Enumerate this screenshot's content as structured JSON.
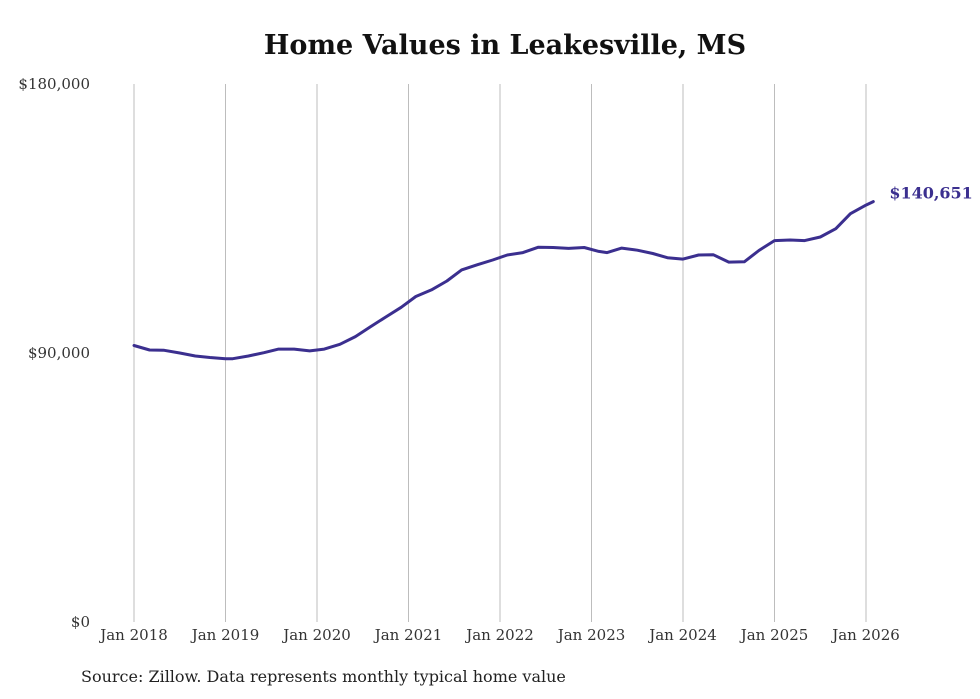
{
  "chart_data": {
    "type": "line",
    "title": "Home Values in Leakesville, MS",
    "xlabel": "",
    "ylabel": "",
    "ylim": [
      0,
      180000
    ],
    "y_ticks": [
      {
        "value": 0,
        "label": "$0"
      },
      {
        "value": 90000,
        "label": "$90,000"
      },
      {
        "value": 180000,
        "label": "$180,000"
      }
    ],
    "x_range": [
      2018.0,
      2026.0
    ],
    "x_ticks": [
      {
        "value": 2018,
        "label": "Jan 2018"
      },
      {
        "value": 2019,
        "label": "Jan 2019"
      },
      {
        "value": 2020,
        "label": "Jan 2020"
      },
      {
        "value": 2021,
        "label": "Jan 2021"
      },
      {
        "value": 2022,
        "label": "Jan 2022"
      },
      {
        "value": 2023,
        "label": "Jan 2023"
      },
      {
        "value": 2024,
        "label": "Jan 2024"
      },
      {
        "value": 2025,
        "label": "Jan 2025"
      },
      {
        "value": 2026,
        "label": "Jan 2026"
      }
    ],
    "grid": "vertical",
    "series": [
      {
        "name": "Typical home value",
        "color": "#3b2f8f",
        "x": [
          2018.0,
          2018.17,
          2018.33,
          2018.5,
          2018.67,
          2018.83,
          2019.0,
          2019.08,
          2019.25,
          2019.42,
          2019.58,
          2019.75,
          2019.92,
          2020.08,
          2020.25,
          2020.42,
          2020.58,
          2020.75,
          2020.92,
          2021.08,
          2021.25,
          2021.42,
          2021.58,
          2021.75,
          2021.92,
          2022.08,
          2022.25,
          2022.42,
          2022.58,
          2022.75,
          2022.92,
          2023.08,
          2023.17,
          2023.33,
          2023.5,
          2023.67,
          2023.83,
          2024.0,
          2024.17,
          2024.33,
          2024.5,
          2024.67,
          2024.83,
          2025.0,
          2025.17,
          2025.33,
          2025.5,
          2025.67,
          2025.83,
          2026.0,
          2026.08
        ],
        "values": [
          92500,
          91000,
          90900,
          90000,
          89000,
          88500,
          88100,
          88100,
          89000,
          90100,
          91300,
          91300,
          90700,
          91300,
          92900,
          95500,
          98700,
          102000,
          105300,
          108900,
          111100,
          114100,
          117800,
          119500,
          121100,
          122800,
          123600,
          125400,
          125300,
          125000,
          125300,
          124000,
          123600,
          125100,
          124400,
          123300,
          121900,
          121400,
          122800,
          122900,
          120400,
          120500,
          124300,
          127600,
          127800,
          127600,
          128800,
          131600,
          136600,
          139500,
          140651
        ]
      }
    ],
    "end_label": "$140,651"
  },
  "source_note": "Source: Zillow. Data represents monthly typical home value"
}
